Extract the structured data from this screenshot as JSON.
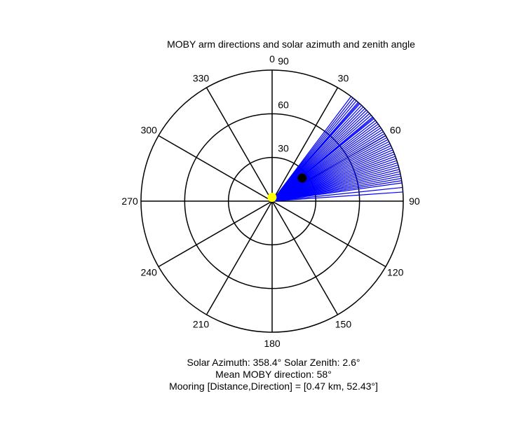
{
  "chart_data": {
    "type": "polar",
    "title": "MOBY arm directions and solar azimuth and zenith angle",
    "angular_axis": {
      "zero_direction": "top",
      "rotation": "clockwise",
      "tick_labels": [
        "0",
        "30",
        "60",
        "90",
        "120",
        "150",
        "180",
        "210",
        "240",
        "270",
        "300",
        "330"
      ]
    },
    "radial_axis": {
      "range": [
        0,
        90
      ],
      "tick_values": [
        30,
        60,
        90
      ],
      "tick_labels": [
        "30",
        "60",
        "90"
      ],
      "label_direction_deg": 0
    },
    "grid": true,
    "series": [
      {
        "type": "rays",
        "color": "#0000ff",
        "length": 90,
        "directions_deg": [
          37,
          38,
          39,
          40,
          41,
          41.5,
          42,
          43,
          44,
          45,
          46,
          47,
          48,
          49,
          50,
          50.5,
          51,
          52,
          53,
          54,
          55,
          56,
          57,
          58,
          59,
          60,
          61,
          62,
          63,
          64,
          65,
          66,
          67,
          68,
          69,
          70,
          71,
          72,
          73,
          74,
          75,
          76,
          77,
          78,
          79,
          80,
          81,
          82,
          84,
          86
        ]
      },
      {
        "type": "point",
        "color": "#000000",
        "azimuth_deg": 52.43,
        "radius": 26
      },
      {
        "type": "point",
        "color": "#ffff00",
        "azimuth_deg": 358.4,
        "radius": 2.6
      }
    ]
  },
  "info": {
    "line1": "Solar Azimuth: 358.4°   Solar Zenith: 2.6°",
    "line2": "Mean MOBY direction: 58°",
    "line3": "Mooring [Distance,Direction] = [0.47 km, 52.43°]"
  }
}
